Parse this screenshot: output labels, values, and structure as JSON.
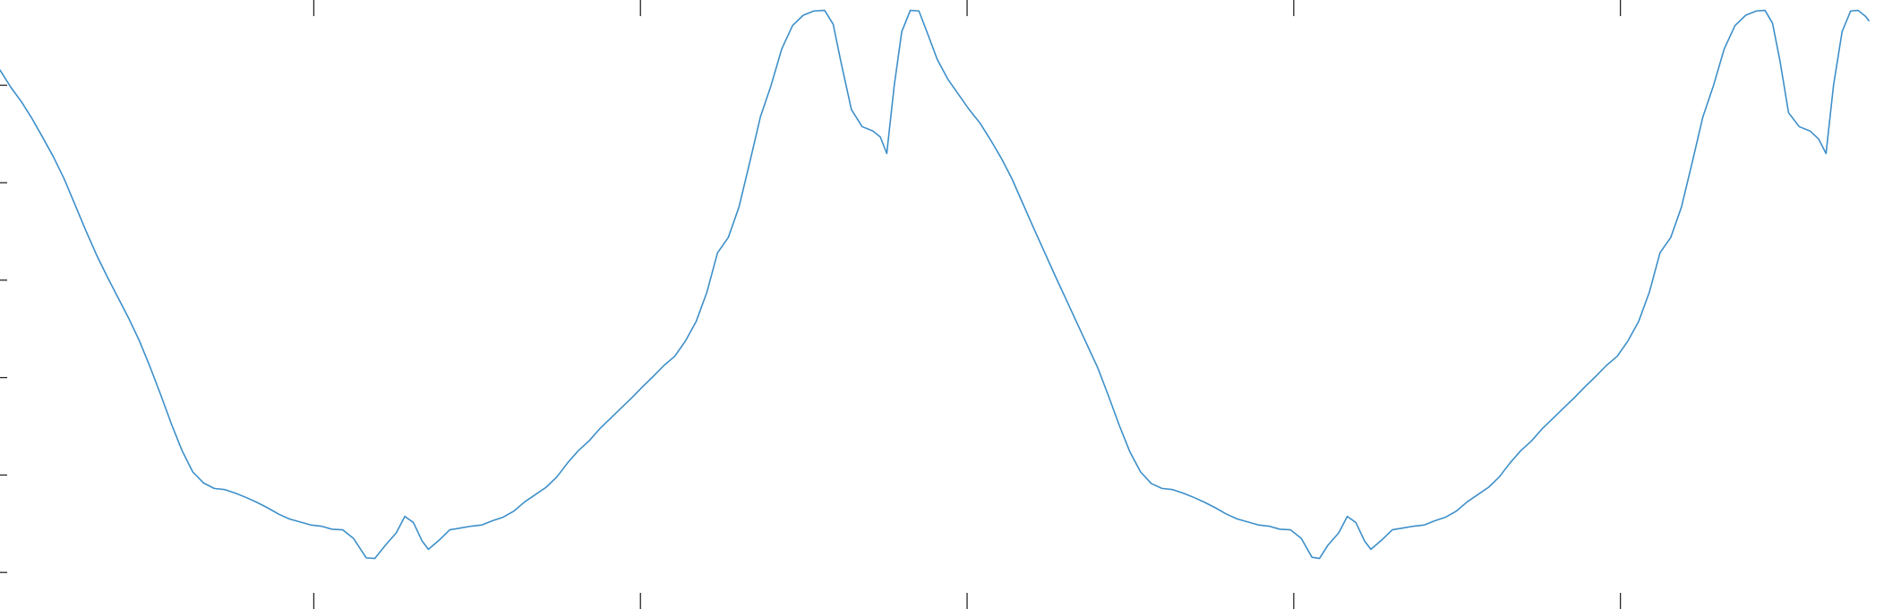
{
  "chart_data": {
    "type": "line",
    "title": "",
    "xlabel": "",
    "ylabel": "",
    "xlim": [
      0,
      1775
    ],
    "ylim": [
      0,
      1
    ],
    "x_ticks": [
      293,
      598,
      903,
      1208,
      1513
    ],
    "y_ticks": [
      0.06,
      0.22,
      0.38,
      0.54,
      0.7,
      0.86
    ],
    "x_tick_labels": [],
    "y_tick_labels": [],
    "grid": false,
    "legend": "none",
    "colors": {
      "series": "#3d8fc9",
      "axis": "#262626",
      "background": "#ffffff"
    },
    "series": [
      {
        "color": "#3d8fc9",
        "points": [
          [
            0,
            0.885
          ],
          [
            10,
            0.857
          ],
          [
            20,
            0.833
          ],
          [
            30,
            0.805
          ],
          [
            40,
            0.774
          ],
          [
            50,
            0.742
          ],
          [
            60,
            0.706
          ],
          [
            70,
            0.664
          ],
          [
            80,
            0.622
          ],
          [
            90,
            0.582
          ],
          [
            100,
            0.546
          ],
          [
            110,
            0.512
          ],
          [
            120,
            0.478
          ],
          [
            130,
            0.441
          ],
          [
            140,
            0.398
          ],
          [
            150,
            0.352
          ],
          [
            160,
            0.304
          ],
          [
            170,
            0.26
          ],
          [
            180,
            0.225
          ],
          [
            190,
            0.207
          ],
          [
            200,
            0.198
          ],
          [
            210,
            0.196
          ],
          [
            220,
            0.19
          ],
          [
            230,
            0.183
          ],
          [
            240,
            0.175
          ],
          [
            250,
            0.166
          ],
          [
            260,
            0.156
          ],
          [
            270,
            0.148
          ],
          [
            280,
            0.143
          ],
          [
            290,
            0.138
          ],
          [
            300,
            0.136
          ],
          [
            310,
            0.131
          ],
          [
            320,
            0.13
          ],
          [
            330,
            0.116
          ],
          [
            342,
            0.084
          ],
          [
            350,
            0.083
          ],
          [
            360,
            0.105
          ],
          [
            370,
            0.125
          ],
          [
            378,
            0.152
          ],
          [
            386,
            0.142
          ],
          [
            394,
            0.112
          ],
          [
            400,
            0.098
          ],
          [
            410,
            0.113
          ],
          [
            420,
            0.13
          ],
          [
            430,
            0.133
          ],
          [
            440,
            0.136
          ],
          [
            450,
            0.138
          ],
          [
            460,
            0.145
          ],
          [
            470,
            0.151
          ],
          [
            480,
            0.161
          ],
          [
            490,
            0.176
          ],
          [
            500,
            0.188
          ],
          [
            510,
            0.2
          ],
          [
            520,
            0.217
          ],
          [
            530,
            0.24
          ],
          [
            540,
            0.26
          ],
          [
            550,
            0.276
          ],
          [
            560,
            0.296
          ],
          [
            570,
            0.313
          ],
          [
            580,
            0.33
          ],
          [
            590,
            0.347
          ],
          [
            600,
            0.365
          ],
          [
            610,
            0.382
          ],
          [
            620,
            0.4
          ],
          [
            630,
            0.415
          ],
          [
            640,
            0.44
          ],
          [
            650,
            0.472
          ],
          [
            660,
            0.52
          ],
          [
            670,
            0.585
          ],
          [
            680,
            0.61
          ],
          [
            690,
            0.66
          ],
          [
            700,
            0.733
          ],
          [
            710,
            0.808
          ],
          [
            720,
            0.86
          ],
          [
            730,
            0.92
          ],
          [
            740,
            0.958
          ],
          [
            750,
            0.975
          ],
          [
            760,
            0.982
          ],
          [
            770,
            0.983
          ],
          [
            778,
            0.96
          ],
          [
            785,
            0.9
          ],
          [
            795,
            0.82
          ],
          [
            805,
            0.792
          ],
          [
            815,
            0.785
          ],
          [
            822,
            0.775
          ],
          [
            828,
            0.748
          ],
          [
            835,
            0.86
          ],
          [
            842,
            0.948
          ],
          [
            850,
            0.983
          ],
          [
            858,
            0.982
          ],
          [
            865,
            0.95
          ],
          [
            875,
            0.903
          ],
          [
            885,
            0.87
          ],
          [
            895,
            0.845
          ],
          [
            905,
            0.82
          ],
          [
            915,
            0.798
          ],
          [
            925,
            0.77
          ],
          [
            935,
            0.74
          ],
          [
            945,
            0.706
          ],
          [
            955,
            0.666
          ],
          [
            965,
            0.626
          ],
          [
            975,
            0.587
          ],
          [
            985,
            0.548
          ],
          [
            995,
            0.51
          ],
          [
            1005,
            0.472
          ],
          [
            1015,
            0.434
          ],
          [
            1025,
            0.396
          ],
          [
            1035,
            0.35
          ],
          [
            1045,
            0.302
          ],
          [
            1055,
            0.258
          ],
          [
            1065,
            0.225
          ],
          [
            1075,
            0.206
          ],
          [
            1085,
            0.198
          ],
          [
            1095,
            0.196
          ],
          [
            1105,
            0.19
          ],
          [
            1115,
            0.183
          ],
          [
            1125,
            0.175
          ],
          [
            1135,
            0.166
          ],
          [
            1145,
            0.156
          ],
          [
            1155,
            0.148
          ],
          [
            1165,
            0.143
          ],
          [
            1175,
            0.138
          ],
          [
            1185,
            0.136
          ],
          [
            1195,
            0.131
          ],
          [
            1205,
            0.13
          ],
          [
            1215,
            0.116
          ],
          [
            1225,
            0.085
          ],
          [
            1232,
            0.083
          ],
          [
            1240,
            0.105
          ],
          [
            1250,
            0.125
          ],
          [
            1258,
            0.152
          ],
          [
            1266,
            0.142
          ],
          [
            1274,
            0.112
          ],
          [
            1280,
            0.098
          ],
          [
            1290,
            0.113
          ],
          [
            1300,
            0.13
          ],
          [
            1310,
            0.133
          ],
          [
            1320,
            0.136
          ],
          [
            1330,
            0.138
          ],
          [
            1340,
            0.145
          ],
          [
            1350,
            0.151
          ],
          [
            1360,
            0.161
          ],
          [
            1370,
            0.176
          ],
          [
            1380,
            0.188
          ],
          [
            1390,
            0.2
          ],
          [
            1400,
            0.217
          ],
          [
            1410,
            0.24
          ],
          [
            1420,
            0.26
          ],
          [
            1430,
            0.276
          ],
          [
            1440,
            0.296
          ],
          [
            1450,
            0.313
          ],
          [
            1460,
            0.33
          ],
          [
            1470,
            0.347
          ],
          [
            1480,
            0.365
          ],
          [
            1490,
            0.382
          ],
          [
            1500,
            0.4
          ],
          [
            1510,
            0.415
          ],
          [
            1520,
            0.44
          ],
          [
            1530,
            0.472
          ],
          [
            1540,
            0.52
          ],
          [
            1550,
            0.585
          ],
          [
            1560,
            0.61
          ],
          [
            1570,
            0.66
          ],
          [
            1580,
            0.733
          ],
          [
            1590,
            0.808
          ],
          [
            1600,
            0.86
          ],
          [
            1610,
            0.92
          ],
          [
            1620,
            0.958
          ],
          [
            1630,
            0.975
          ],
          [
            1640,
            0.982
          ],
          [
            1648,
            0.983
          ],
          [
            1655,
            0.962
          ],
          [
            1662,
            0.9
          ],
          [
            1670,
            0.815
          ],
          [
            1680,
            0.792
          ],
          [
            1690,
            0.785
          ],
          [
            1698,
            0.772
          ],
          [
            1705,
            0.748
          ],
          [
            1712,
            0.86
          ],
          [
            1720,
            0.948
          ],
          [
            1728,
            0.982
          ],
          [
            1735,
            0.983
          ],
          [
            1742,
            0.973
          ],
          [
            1745,
            0.966
          ]
        ]
      }
    ]
  }
}
